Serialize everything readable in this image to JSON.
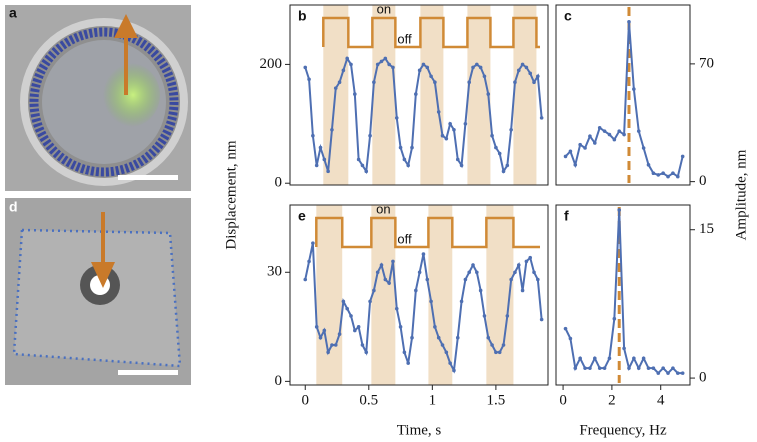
{
  "images": [
    {
      "label": "a"
    },
    {
      "label": "d"
    }
  ],
  "chart_data": [
    {
      "type": "line",
      "label": "b",
      "ylabel": "Displacement, nm",
      "color": "#4e6fb2",
      "stimulus_color": "#d08a36",
      "band_color": "#f1dfc6",
      "on_label": "on",
      "off_label": "off",
      "on_intervals": [
        [
          0.142,
          0.339
        ],
        [
          0.528,
          0.709
        ],
        [
          0.906,
          1.087
        ],
        [
          1.276,
          1.457
        ],
        [
          1.638,
          1.819
        ]
      ],
      "x": [
        0,
        0.03,
        0.06,
        0.09,
        0.12,
        0.15,
        0.18,
        0.21,
        0.24,
        0.27,
        0.3,
        0.33,
        0.36,
        0.39,
        0.42,
        0.45,
        0.48,
        0.51,
        0.54,
        0.57,
        0.6,
        0.63,
        0.66,
        0.69,
        0.72,
        0.75,
        0.78,
        0.81,
        0.84,
        0.87,
        0.9,
        0.93,
        0.96,
        0.99,
        1.02,
        1.05,
        1.08,
        1.11,
        1.14,
        1.17,
        1.2,
        1.23,
        1.26,
        1.29,
        1.32,
        1.35,
        1.38,
        1.41,
        1.44,
        1.47,
        1.5,
        1.53,
        1.56,
        1.59,
        1.62,
        1.65,
        1.68,
        1.71,
        1.74,
        1.77,
        1.8,
        1.83,
        1.86
      ],
      "values": [
        195,
        175,
        80,
        30,
        60,
        40,
        20,
        90,
        160,
        170,
        190,
        210,
        200,
        150,
        40,
        30,
        20,
        80,
        170,
        200,
        205,
        210,
        200,
        195,
        110,
        60,
        40,
        30,
        60,
        150,
        190,
        200,
        195,
        180,
        170,
        120,
        80,
        75,
        100,
        90,
        40,
        30,
        100,
        170,
        195,
        200,
        195,
        180,
        150,
        80,
        60,
        50,
        20,
        30,
        90,
        170,
        190,
        200,
        195,
        185,
        170,
        180,
        110
      ],
      "xlim": [
        -0.12,
        1.91
      ],
      "ylim": [
        -3,
        300
      ],
      "yticks": [
        0,
        200
      ]
    },
    {
      "type": "line",
      "label": "c",
      "color": "#4e6fb2",
      "marker_color": "#d08a36",
      "yaxis_side": "right",
      "marker_x": 2.7,
      "x": [
        0.1,
        0.3,
        0.5,
        0.7,
        0.9,
        1.1,
        1.3,
        1.5,
        1.7,
        1.9,
        2.1,
        2.3,
        2.5,
        2.7,
        2.9,
        3.1,
        3.3,
        3.5,
        3.7,
        3.9,
        4.1,
        4.3,
        4.5,
        4.7,
        4.9
      ],
      "values": [
        15,
        18,
        10,
        22,
        20,
        27,
        23,
        32,
        30,
        28,
        25,
        30,
        28,
        95,
        55,
        30,
        20,
        10,
        5,
        4,
        5,
        3,
        5,
        3,
        15
      ],
      "xlim": [
        -0.29,
        5.2
      ],
      "ylim": [
        -2,
        105
      ],
      "yticks": [
        0,
        70
      ]
    },
    {
      "type": "line",
      "label": "e",
      "xlabel": "Time, s",
      "color": "#4e6fb2",
      "stimulus_color": "#d08a36",
      "band_color": "#f1dfc6",
      "on_label": "on",
      "off_label": "off",
      "on_intervals": [
        [
          0.087,
          0.291
        ],
        [
          0.52,
          0.709
        ],
        [
          0.969,
          1.157
        ],
        [
          1.425,
          1.638
        ]
      ],
      "x": [
        0,
        0.03,
        0.06,
        0.09,
        0.12,
        0.15,
        0.18,
        0.21,
        0.24,
        0.27,
        0.3,
        0.33,
        0.36,
        0.39,
        0.42,
        0.45,
        0.48,
        0.51,
        0.54,
        0.57,
        0.6,
        0.63,
        0.66,
        0.69,
        0.72,
        0.75,
        0.78,
        0.81,
        0.84,
        0.87,
        0.9,
        0.93,
        0.96,
        0.99,
        1.02,
        1.05,
        1.08,
        1.11,
        1.14,
        1.17,
        1.2,
        1.23,
        1.26,
        1.29,
        1.32,
        1.35,
        1.38,
        1.41,
        1.44,
        1.47,
        1.5,
        1.53,
        1.56,
        1.59,
        1.62,
        1.65,
        1.68,
        1.71,
        1.74,
        1.77,
        1.8,
        1.83,
        1.86
      ],
      "values": [
        28,
        33,
        38,
        15,
        12,
        14,
        8,
        10,
        10,
        13,
        22,
        20,
        18,
        14,
        15,
        10,
        8,
        22,
        25,
        30,
        32,
        28,
        27,
        33,
        20,
        15,
        8,
        5,
        12,
        25,
        30,
        35,
        28,
        22,
        15,
        12,
        10,
        8,
        5,
        3,
        12,
        22,
        28,
        30,
        32,
        30,
        25,
        18,
        12,
        10,
        8,
        8,
        10,
        18,
        28,
        30,
        32,
        25,
        33,
        34,
        30,
        28,
        17
      ],
      "xlim": [
        -0.12,
        1.91
      ],
      "ylim": [
        -1,
        48.5
      ],
      "xticks": [
        0,
        0.5,
        1,
        1.5
      ],
      "yticks": [
        0,
        30
      ]
    },
    {
      "type": "line",
      "label": "f",
      "xlabel": "Frequency, Hz",
      "ylabel": "Amplitude, nm",
      "color": "#4e6fb2",
      "marker_color": "#d08a36",
      "yaxis_side": "right",
      "marker_x": 2.3,
      "x": [
        0.1,
        0.3,
        0.5,
        0.7,
        0.9,
        1.1,
        1.3,
        1.5,
        1.7,
        1.9,
        2.1,
        2.3,
        2.5,
        2.7,
        2.9,
        3.1,
        3.3,
        3.5,
        3.7,
        3.9,
        4.1,
        4.3,
        4.5,
        4.7,
        4.9
      ],
      "values": [
        5,
        4,
        1,
        2,
        1,
        1,
        2,
        1,
        1,
        2,
        6,
        17,
        3,
        1,
        2,
        1,
        2,
        1,
        1,
        0.5,
        1,
        0.5,
        1,
        0.5,
        0.5
      ],
      "xlim": [
        -0.29,
        5.2
      ],
      "ylim": [
        -0.7,
        17.5
      ],
      "xticks": [
        0,
        2,
        4
      ],
      "yticks": [
        0,
        15
      ]
    }
  ]
}
